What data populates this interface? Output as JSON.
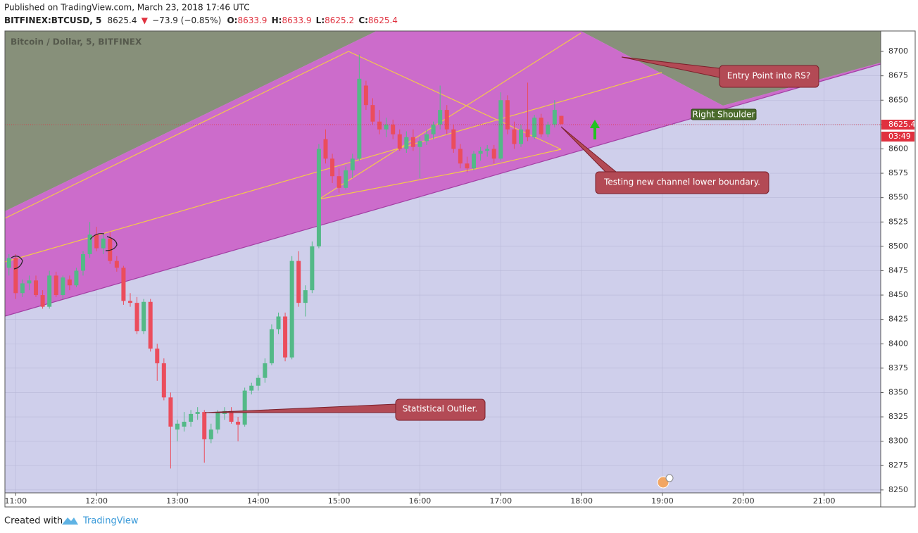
{
  "header": {
    "published": "Published on TradingView.com, March 23, 2018 17:46 UTC",
    "symbol": "BITFINEX:BTCUSD, 5",
    "change": "−73.9 (−0.85%)",
    "open_label": "O:",
    "high_label": "H:",
    "low_label": "L:",
    "close_label": "C:"
  },
  "footer": {
    "created": "Created with",
    "brand": "TradingView"
  },
  "chart_data": {
    "type": "candlestick",
    "subtitle": "Bitcoin / Dollar, 5, BITFINEX",
    "up_color": "#53b987",
    "down_color": "#eb4d5c",
    "candles": {
      "x": [
        "10:55",
        "11:00",
        "11:05",
        "11:10",
        "11:15",
        "11:20",
        "11:25",
        "11:30",
        "11:35",
        "11:40",
        "11:45",
        "11:50",
        "11:55",
        "12:00",
        "12:05",
        "12:10",
        "12:15",
        "12:20",
        "12:25",
        "12:30",
        "12:35",
        "12:40",
        "12:45",
        "12:50",
        "12:55",
        "13:00",
        "13:05",
        "13:10",
        "13:15",
        "13:20",
        "13:25",
        "13:30",
        "13:35",
        "13:40",
        "13:45",
        "13:50",
        "13:55",
        "14:00",
        "14:05",
        "14:10",
        "14:15",
        "14:20",
        "14:25",
        "14:30",
        "14:35",
        "14:40",
        "14:45",
        "14:50",
        "14:55",
        "15:00",
        "15:05",
        "15:10",
        "15:15",
        "15:20",
        "15:25",
        "15:30",
        "15:35",
        "15:40",
        "15:45",
        "15:50",
        "15:55",
        "16:00",
        "16:05",
        "16:10",
        "16:15",
        "16:20",
        "16:25",
        "16:30",
        "16:35",
        "16:40",
        "16:45",
        "16:50",
        "16:55",
        "17:00",
        "17:05",
        "17:10",
        "17:15",
        "17:20",
        "17:25",
        "17:30",
        "17:35",
        "17:40",
        "17:45"
      ],
      "open": [
        8478,
        8488,
        8452,
        8462,
        8465,
        8450,
        8438,
        8470,
        8450,
        8466,
        8460,
        8475,
        8492,
        8512,
        8498,
        8508,
        8485,
        8478,
        8444,
        8442,
        8413,
        8443,
        8395,
        8380,
        8345,
        8312,
        8315,
        8320,
        8328,
        8330,
        8302,
        8312,
        8328,
        8331,
        8320,
        8317,
        8352,
        8357,
        8365,
        8380,
        8415,
        8428,
        8386,
        8485,
        8442,
        8455,
        8500,
        8610,
        8590,
        8572,
        8560,
        8578,
        8590,
        8665,
        8645,
        8628,
        8620,
        8625,
        8615,
        8600,
        8612,
        8602,
        8608,
        8615,
        8625,
        8640,
        8620,
        8600,
        8585,
        8580,
        8595,
        8598,
        8600,
        8590,
        8650,
        8620,
        8605,
        8620,
        8612,
        8632,
        8615,
        8625,
        8633.9
      ],
      "high": [
        8492,
        8492,
        8466,
        8470,
        8470,
        8455,
        8475,
        8474,
        8470,
        8470,
        8478,
        8495,
        8525,
        8520,
        8512,
        8515,
        8490,
        8480,
        8452,
        8448,
        8446,
        8446,
        8400,
        8385,
        8350,
        8322,
        8330,
        8332,
        8335,
        8332,
        8318,
        8332,
        8335,
        8335,
        8325,
        8355,
        8360,
        8368,
        8385,
        8420,
        8432,
        8432,
        8490,
        8495,
        8460,
        8505,
        8605,
        8620,
        8595,
        8580,
        8582,
        8595,
        8697,
        8670,
        8652,
        8640,
        8632,
        8630,
        8620,
        8618,
        8620,
        8612,
        8620,
        8628,
        8665,
        8645,
        8625,
        8605,
        8592,
        8598,
        8602,
        8604,
        8604,
        8658,
        8655,
        8628,
        8625,
        8668,
        8635,
        8636,
        8628,
        8650,
        8633.9
      ],
      "low": [
        8470,
        8446,
        8448,
        8455,
        8448,
        8436,
        8436,
        8448,
        8446,
        8455,
        8458,
        8470,
        8488,
        8495,
        8492,
        8482,
        8474,
        8440,
        8438,
        8410,
        8410,
        8392,
        8362,
        8342,
        8272,
        8300,
        8310,
        8315,
        8322,
        8278,
        8298,
        8308,
        8322,
        8318,
        8300,
        8315,
        8348,
        8352,
        8360,
        8378,
        8410,
        8382,
        8384,
        8438,
        8428,
        8452,
        8498,
        8585,
        8565,
        8555,
        8558,
        8570,
        8588,
        8640,
        8625,
        8615,
        8612,
        8610,
        8598,
        8596,
        8598,
        8570,
        8604,
        8610,
        8620,
        8615,
        8596,
        8580,
        8576,
        8578,
        8588,
        8592,
        8585,
        8588,
        8615,
        8600,
        8602,
        8608,
        8610,
        8612,
        8612,
        8622,
        8625.2
      ],
      "close": [
        8488,
        8452,
        8462,
        8465,
        8450,
        8438,
        8470,
        8450,
        8468,
        8460,
        8475,
        8492,
        8512,
        8498,
        8508,
        8485,
        8478,
        8444,
        8442,
        8413,
        8443,
        8395,
        8380,
        8345,
        8315,
        8318,
        8320,
        8328,
        8330,
        8302,
        8312,
        8330,
        8331,
        8320,
        8317,
        8352,
        8357,
        8365,
        8380,
        8415,
        8428,
        8386,
        8485,
        8442,
        8455,
        8500,
        8600,
        8590,
        8572,
        8560,
        8578,
        8590,
        8672,
        8645,
        8628,
        8620,
        8625,
        8615,
        8600,
        8612,
        8602,
        8608,
        8615,
        8625,
        8640,
        8620,
        8600,
        8585,
        8580,
        8595,
        8598,
        8600,
        8590,
        8650,
        8620,
        8605,
        8620,
        8612,
        8632,
        8615,
        8625,
        8640,
        8625.4
      ]
    },
    "xlim": [
      "10:52",
      "21:42"
    ],
    "xticks": [
      "11:00",
      "12:00",
      "13:00",
      "14:00",
      "15:00",
      "16:00",
      "17:00",
      "18:00",
      "19:00",
      "20:00",
      "21:00"
    ],
    "ylim": [
      8247,
      8721
    ],
    "yticks": [
      8250,
      8275,
      8300,
      8325,
      8350,
      8375,
      8400,
      8425,
      8450,
      8475,
      8500,
      8525,
      8550,
      8575,
      8600,
      8625,
      8650,
      8675,
      8700
    ],
    "grid": true,
    "last_price": 8625.4,
    "countdown": "03:49",
    "annotations": [
      "Statistical Outlier.",
      "Testing new channel lower boundary.",
      "Entry Point into RS?",
      "Right Shoulder"
    ]
  }
}
